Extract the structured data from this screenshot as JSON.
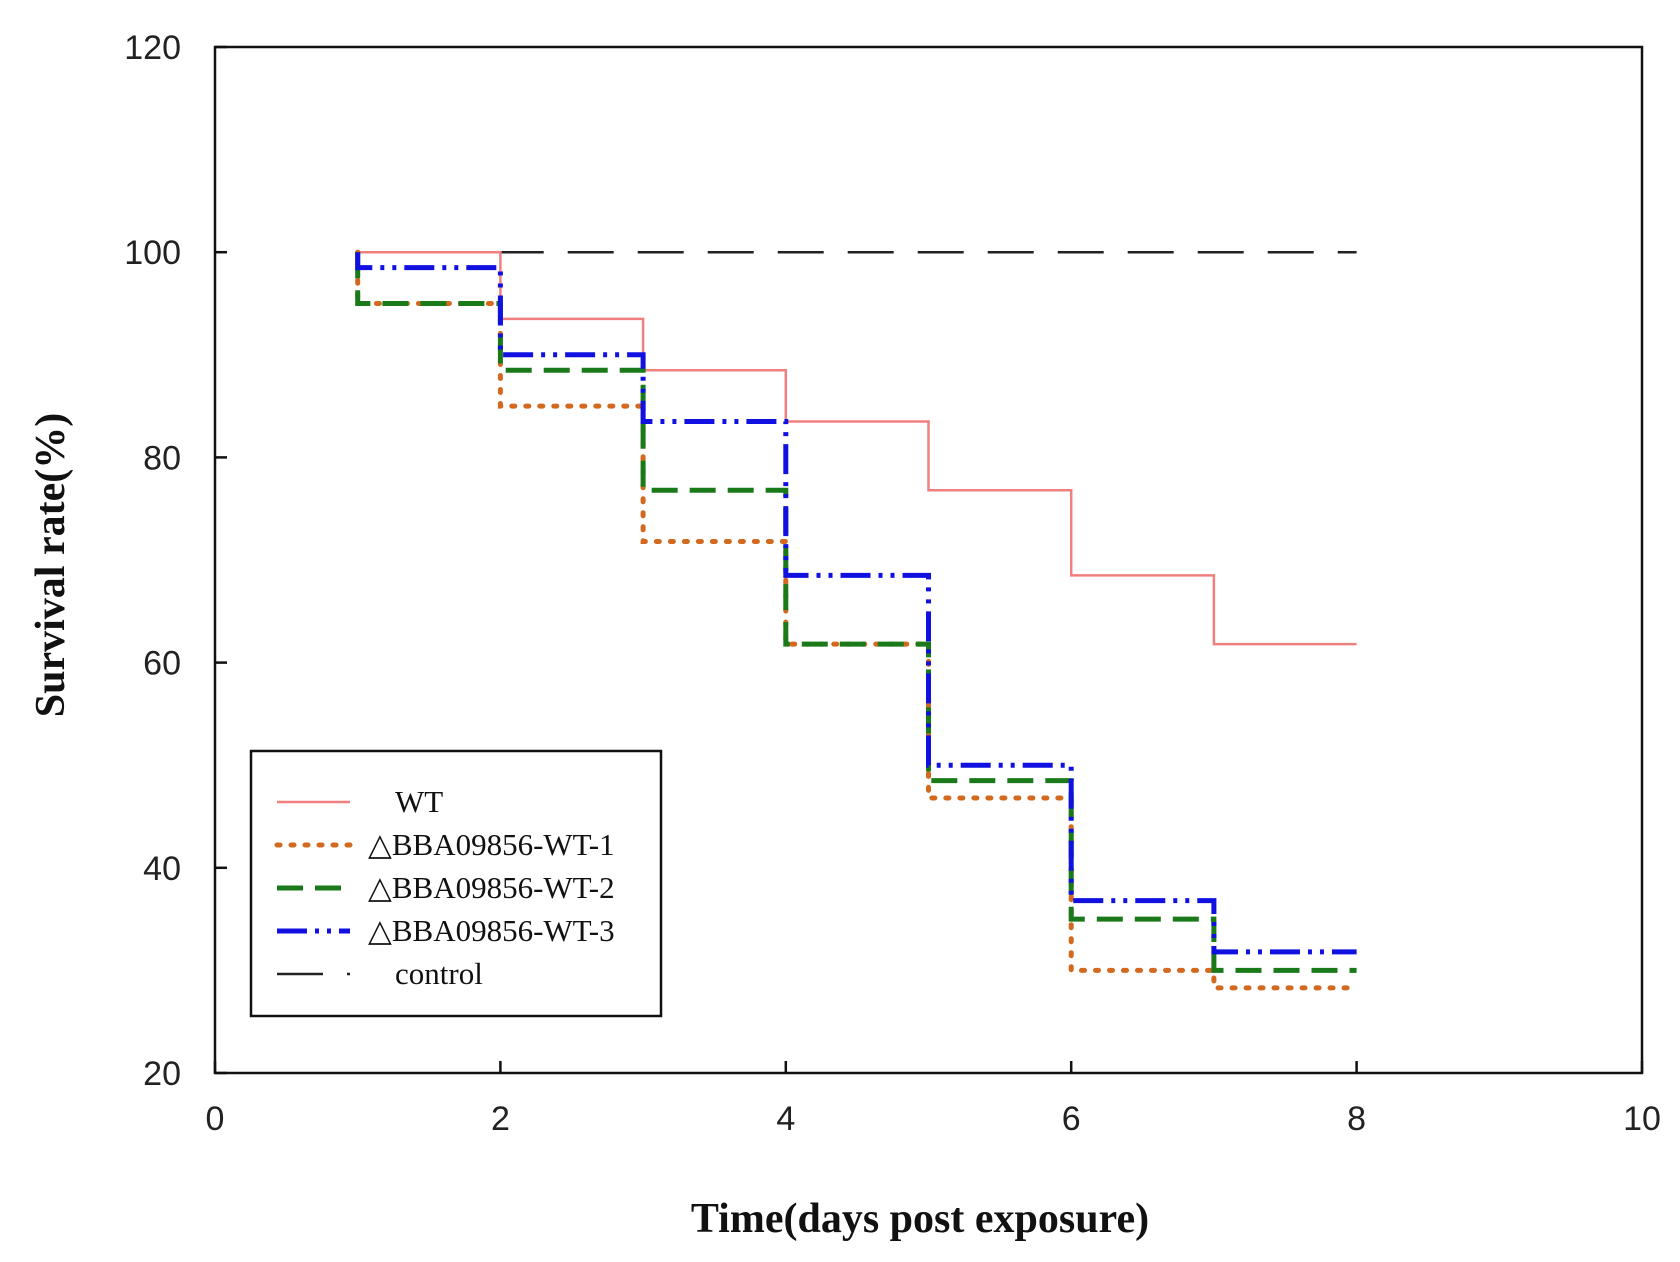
{
  "chart_data": {
    "type": "line",
    "subtype": "step",
    "title": "",
    "xlabel": "Time(days post exposure)",
    "ylabel": "Survival rate(%)",
    "xlim": [
      0,
      10
    ],
    "ylim": [
      20,
      120
    ],
    "xticks": [
      0,
      2,
      4,
      6,
      8,
      10
    ],
    "yticks": [
      20,
      40,
      60,
      80,
      100,
      120
    ],
    "grid": false,
    "legend_position": "lower-left",
    "series": [
      {
        "name": "WT",
        "style": "solid",
        "color": "#f08080",
        "x": [
          1,
          2,
          3,
          4,
          5,
          6,
          7,
          8
        ],
        "y": [
          100,
          93.5,
          88.5,
          83.5,
          76.8,
          68.5,
          61.8,
          61.8
        ]
      },
      {
        "name": "△BBA09856-WT-1",
        "style": "dotted",
        "color": "#d2691e",
        "x": [
          1,
          2,
          3,
          4,
          5,
          6,
          7,
          8
        ],
        "y": [
          95,
          85,
          71.8,
          61.8,
          46.8,
          30,
          28.3,
          28.3
        ]
      },
      {
        "name": "△BBA09856-WT-2",
        "style": "dashed",
        "color": "#1a7a1a",
        "x": [
          1,
          2,
          3,
          4,
          5,
          6,
          7,
          8
        ],
        "y": [
          95,
          88.5,
          76.8,
          61.8,
          48.5,
          35,
          30,
          30
        ]
      },
      {
        "name": "△BBA09856-WT-3",
        "style": "dash-dot-dot",
        "color": "#1010e0",
        "x": [
          1,
          2,
          3,
          4,
          5,
          6,
          7,
          8
        ],
        "y": [
          98.5,
          90,
          83.5,
          68.5,
          50,
          36.8,
          31.8,
          31.8
        ]
      },
      {
        "name": "control",
        "style": "long-dash",
        "color": "#222222",
        "x": [
          1,
          8
        ],
        "y": [
          100,
          100
        ]
      }
    ]
  }
}
